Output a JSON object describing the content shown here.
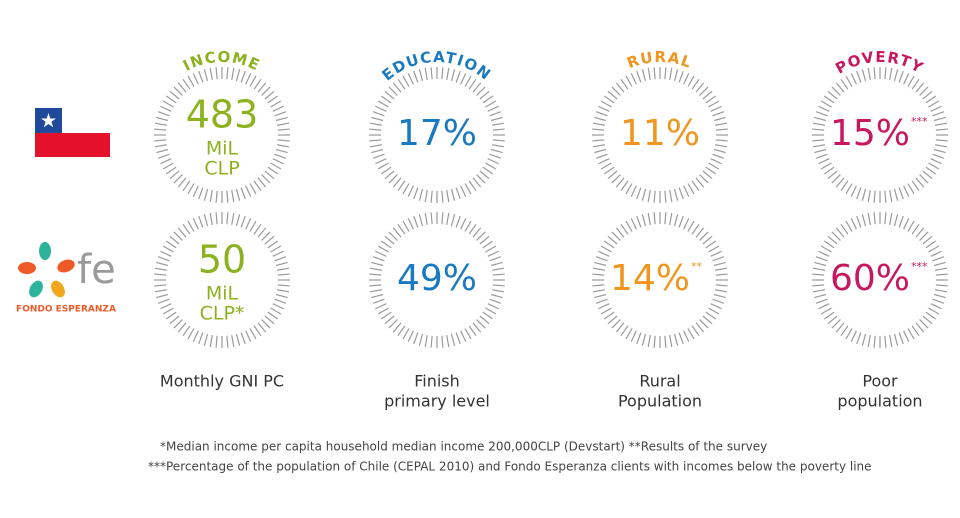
{
  "logo": {
    "mark": "fe",
    "name": "FONDO ESPERANZA"
  },
  "columns": [
    {
      "heading": "INCOME",
      "color": "#8cb21f",
      "chile": {
        "lines": [
          "483",
          "MiL",
          "CLP"
        ]
      },
      "fondo": {
        "lines": [
          "50",
          "MiL",
          "CLP*"
        ]
      },
      "label": [
        "Monthly GNI PC"
      ]
    },
    {
      "heading": "EDUCATION",
      "color": "#1a7ac0",
      "chile": {
        "lines": [
          "17%"
        ]
      },
      "fondo": {
        "lines": [
          "49%"
        ]
      },
      "label": [
        "Finish",
        "primary level"
      ]
    },
    {
      "heading": "RURAL",
      "color": "#f0961e",
      "chile": {
        "lines": [
          "11%"
        ]
      },
      "fondo": {
        "lines": [
          "14%"
        ],
        "note": "**"
      },
      "label": [
        "Rural",
        "Population"
      ]
    },
    {
      "heading": "POVERTY",
      "color": "#c8175f",
      "chile": {
        "lines": [
          "15%"
        ],
        "note": "***"
      },
      "fondo": {
        "lines": [
          "60%"
        ],
        "note": "***"
      },
      "label": [
        "Poor",
        "population"
      ]
    }
  ],
  "footnotes": [
    "*Median income per capita household median income 200,000CLP (Devstart)  **Results of the survey",
    "***Percentage of the population of Chile (CEPAL 2010) and Fondo Esperanza clients with incomes below the poverty line"
  ]
}
